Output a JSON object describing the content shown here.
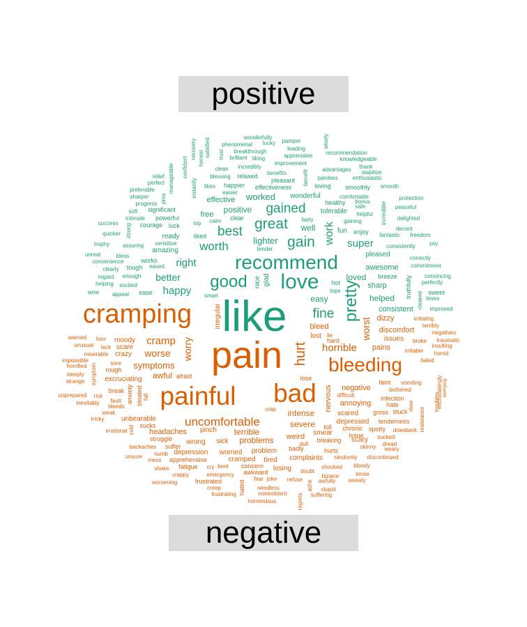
{
  "chart_data": {
    "type": "comparison_wordcloud",
    "categories": [
      {
        "name": "positive",
        "color": "#1b9e77"
      },
      {
        "name": "negative",
        "color": "#d95f02"
      }
    ],
    "words": {
      "positive": [
        "like",
        "recommend",
        "love",
        "good",
        "pretty",
        "gained",
        "great",
        "gain",
        "best",
        "worth",
        "lighter",
        "work",
        "super",
        "fine",
        "right",
        "better",
        "happy",
        "worked",
        "positive",
        "effective",
        "free",
        "well",
        "helped",
        "awesome",
        "loved",
        "sharp",
        "easy",
        "consistent",
        "wonderfully",
        "pamper",
        "lucky",
        "leading",
        "wisely",
        "recovery",
        "satisfied",
        "honest",
        "phenomenal",
        "breakthrough",
        "brilliant",
        "trust",
        "liking",
        "appreciates",
        "recommendation",
        "knowledgeable",
        "confident",
        "improvement",
        "clean",
        "incredibly",
        "advantages",
        "thank",
        "manageable",
        "instantly",
        "blessing",
        "relaxed",
        "benefits",
        "enthusiastic",
        "pleasant",
        "painless",
        "stabilize",
        "relief",
        "perfect",
        "likes",
        "happier",
        "easier",
        "effectiveness",
        "benefit",
        "loving",
        "smoothly",
        "smooth",
        "preferable",
        "sharper",
        "pros",
        "wonderful",
        "comfortable",
        "bonus",
        "protection",
        "progress",
        "healthy",
        "safe",
        "peaceful",
        "soft",
        "intimate",
        "significant",
        "powerful",
        "calm",
        "tolerable",
        "helpful",
        "incredible",
        "delighted",
        "success",
        "courage",
        "luck",
        "top",
        "clear",
        "fairly",
        "strong",
        "gaining",
        "decent",
        "quicker",
        "ready",
        "liked",
        "tender",
        "fun",
        "enjoy",
        "fantastic",
        "freedom",
        "trophy",
        "assuring",
        "sensitive",
        "amazing",
        "consistently",
        "yay",
        "unreal",
        "bless",
        "works",
        "pleased",
        "correctly",
        "convenience",
        "eased",
        "commitment",
        "clearly",
        "tough",
        "enough",
        "nice",
        "glad",
        "breeze",
        "convincing",
        "regard",
        "helping",
        "excited",
        "hot",
        "perfectly",
        "appeal",
        "ease",
        "smart",
        "tops",
        "truthfully",
        "sweet",
        "wow",
        "cleared",
        "loves",
        "improved"
      ],
      "negative": [
        "pain",
        "cramping",
        "painful",
        "bad",
        "bleeding",
        "hurt",
        "uncomfortable",
        "cramp",
        "horrible",
        "worse",
        "worst",
        "symptoms",
        "awful",
        "worry",
        "irregular",
        "moody",
        "scare",
        "crazy",
        "excruciating",
        "bleed",
        "lost",
        "hard",
        "lie",
        "dizzy",
        "discomfort",
        "issues",
        "pains",
        "irritating",
        "terribly",
        "negatives",
        "traumatic",
        "insulting",
        "broke",
        "irritable",
        "horrid",
        "failed",
        "warned",
        "loss",
        "unusual",
        "lack",
        "miserable",
        "impossible",
        "horrified",
        "steeply",
        "strange",
        "symptom",
        "sore",
        "rough",
        "afraid",
        "lose",
        "faint",
        "vomiting",
        "bothered",
        "excruciatingly",
        "worrying",
        "troubles",
        "negative",
        "difficult",
        "infection",
        "hate",
        "nervous",
        "annoying",
        "scared",
        "gross",
        "stuck",
        "unprepared",
        "risk",
        "inevitably",
        "fault",
        "bleeds",
        "anxiety",
        "bloated",
        "fall",
        "break",
        "weak",
        "unbearable",
        "tricky",
        "sucks",
        "intense",
        "severe",
        "crap",
        "depressed",
        "tenderness",
        "drawback",
        "resistance",
        "slow",
        "irrational",
        "cold",
        "headaches",
        "pinch",
        "terrible",
        "toll",
        "chronic",
        "spotty",
        "issue",
        "smear",
        "scary",
        "struggle",
        "backaches",
        "suffer",
        "wrong",
        "sick",
        "problems",
        "weird",
        "dull",
        "breaking",
        "sucked",
        "dread",
        "weary",
        "unsure",
        "mess",
        "numb",
        "depression",
        "apprehensive",
        "worried",
        "problem",
        "badly",
        "hurts",
        "skinny",
        "discontinued",
        "cramped",
        "tired",
        "complaints",
        "randomly",
        "shake",
        "fatigue",
        "cry",
        "bent",
        "concern",
        "losing",
        "shocked",
        "bloody",
        "crappy",
        "emergency",
        "awkward",
        "doubt",
        "bizarre",
        "tense",
        "worsening",
        "frustrated",
        "creep",
        "hated",
        "fear",
        "joke",
        "refuse",
        "ache",
        "awfully",
        "sweaty",
        "frustrating",
        "needless",
        "nonexistent",
        "stupid",
        "horrendous",
        "regrets",
        "suffering"
      ]
    }
  }
}
